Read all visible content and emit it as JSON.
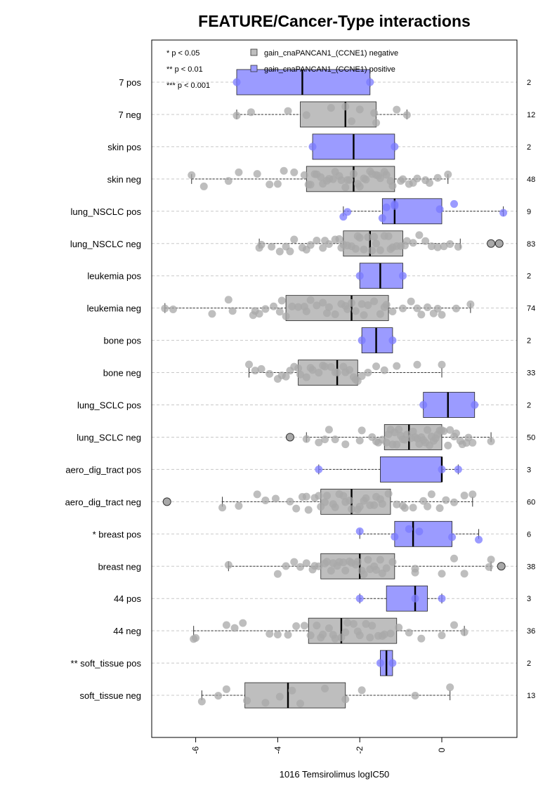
{
  "chart_data": {
    "type": "boxplot",
    "orientation": "horizontal",
    "title": "FEATURE/Cancer-Type interactions",
    "xlabel": "1016 Temsirolimus logIC50",
    "xlim": [
      -7.2,
      1.85
    ],
    "xticks": [
      -6,
      -4,
      -2,
      0
    ],
    "xtick_labels": [
      "-6",
      "-4",
      "-2",
      "0"
    ],
    "grid": "horizontal dashed lines at each row",
    "legend_position": "top-left",
    "legend": [
      {
        "label": "gain_cnaPANCAN1_(CCNE1) negative",
        "color": "#bebebe"
      },
      {
        "label": "gain_cnaPANCAN1_(CCNE1) positive",
        "color": "#9b9bff"
      }
    ],
    "significance_legend": [
      "* p < 0.05",
      "** p < 0.01",
      "*** p < 0.001"
    ],
    "colors": {
      "negative_fill": "#bebebe",
      "positive_fill": "#9b9bff",
      "negative_point": "#a8a8a8",
      "positive_point": "#7a7aff"
    },
    "rows": [
      {
        "label": "7 pos",
        "n": "2",
        "group": "pos",
        "whisker_low": -5.0,
        "q1": -5.0,
        "median": -3.4,
        "q3": -1.75,
        "whisker_high": -1.75,
        "points": [
          -5.0,
          -1.75
        ],
        "outliers": []
      },
      {
        "label": "7 neg",
        "n": "12",
        "group": "neg",
        "whisker_low": -5.0,
        "q1": -3.45,
        "median": -2.35,
        "q3": -1.6,
        "whisker_high": -0.85,
        "points": [
          -5.0,
          -4.65,
          -3.75,
          -3.3,
          -2.7,
          -2.35,
          -2.2,
          -2.0,
          -1.65,
          -1.6,
          -1.1,
          -0.85
        ],
        "outliers": []
      },
      {
        "label": "skin pos",
        "n": "2",
        "group": "pos",
        "whisker_low": -3.15,
        "q1": -3.15,
        "median": -2.15,
        "q3": -1.15,
        "whisker_high": -1.15,
        "points": [
          -3.15,
          -1.15
        ],
        "outliers": []
      },
      {
        "label": "skin neg",
        "n": "48",
        "group": "neg",
        "whisker_low": -6.1,
        "q1": -3.3,
        "median": -2.15,
        "q3": -1.15,
        "whisker_high": 0.15,
        "points": [
          -6.1,
          -5.8,
          -5.2,
          -4.95,
          -4.5,
          -4.2,
          -4.0,
          -3.85,
          -3.6,
          -3.35,
          -3.25,
          -3.1,
          -2.95,
          -2.8,
          -2.65,
          -2.5,
          -2.35,
          -2.25,
          -2.15,
          -2.05,
          -1.9,
          -1.75,
          -1.6,
          -1.5,
          -1.35,
          -1.2,
          -1.0,
          -0.95,
          -0.8,
          -0.6,
          -0.4,
          -0.3,
          -0.1,
          0.15,
          -3.2,
          -2.9,
          -2.6,
          -2.3,
          -2.0,
          -1.7,
          -1.4,
          -3.05,
          -2.75,
          -2.45,
          -1.85,
          -1.55,
          -1.25,
          -0.7
        ],
        "outliers": []
      },
      {
        "label": "lung_NSCLC pos",
        "n": "9",
        "group": "pos",
        "whisker_low": -2.4,
        "q1": -1.45,
        "median": -1.15,
        "q3": 0.0,
        "whisker_high": 1.5,
        "points": [
          -2.4,
          -2.3,
          -1.45,
          -1.35,
          -1.15,
          -1.15,
          -0.05,
          0.3,
          1.5
        ],
        "outliers": []
      },
      {
        "label": "lung_NSCLC neg",
        "n": "83",
        "group": "neg",
        "whisker_low": -4.45,
        "q1": -2.4,
        "median": -1.75,
        "q3": -0.95,
        "whisker_high": 0.45,
        "points": [
          -4.45,
          -4.4,
          -4.15,
          -3.95,
          -3.8,
          -3.6,
          -3.4,
          -3.2,
          -3.05,
          -2.9,
          -2.75,
          -2.6,
          -2.5,
          -2.4,
          -2.3,
          -2.2,
          -2.1,
          -2.0,
          -1.9,
          -1.8,
          -1.7,
          -1.6,
          -1.5,
          -1.4,
          -1.3,
          -1.2,
          -1.1,
          -1.0,
          -0.85,
          -0.7,
          -0.55,
          -0.4,
          -0.25,
          -0.1,
          0.05,
          0.2,
          0.4,
          -3.7,
          -3.3,
          -2.85,
          -2.45,
          -2.05,
          -1.65,
          -1.25,
          -0.9
        ],
        "outliers": [
          1.2,
          1.4
        ]
      },
      {
        "label": "leukemia pos",
        "n": "2",
        "group": "pos",
        "whisker_low": -2.0,
        "q1": -2.0,
        "median": -1.5,
        "q3": -0.95,
        "whisker_high": -0.95,
        "points": [
          -2.0,
          -0.95
        ],
        "outliers": []
      },
      {
        "label": "leukemia neg",
        "n": "74",
        "group": "neg",
        "whisker_low": -6.75,
        "q1": -3.8,
        "median": -2.2,
        "q3": -1.3,
        "whisker_high": 0.7,
        "points": [
          -6.75,
          -6.55,
          -5.6,
          -5.2,
          -5.1,
          -4.55,
          -4.45,
          -4.3,
          -4.1,
          -3.95,
          -3.8,
          -3.65,
          -3.5,
          -3.35,
          -3.2,
          -3.05,
          -2.9,
          -2.75,
          -2.6,
          -2.45,
          -2.3,
          -2.2,
          -2.1,
          -1.95,
          -1.8,
          -1.65,
          -1.5,
          -1.35,
          -1.2,
          -0.95,
          -0.75,
          -0.5,
          -0.35,
          -0.2,
          0.0,
          0.35,
          0.7,
          -4.6,
          -3.9,
          -3.3,
          -2.8,
          -2.35,
          -1.9,
          -1.4,
          -0.6,
          -0.1
        ],
        "outliers": []
      },
      {
        "label": "bone pos",
        "n": "2",
        "group": "pos",
        "whisker_low": -1.95,
        "q1": -1.95,
        "median": -1.6,
        "q3": -1.2,
        "whisker_high": -1.2,
        "points": [
          -1.95,
          -1.2
        ],
        "outliers": []
      },
      {
        "label": "bone neg",
        "n": "33",
        "group": "neg",
        "whisker_low": -4.7,
        "q1": -3.5,
        "median": -2.55,
        "q3": -2.05,
        "whisker_high": 0.0,
        "points": [
          -4.7,
          -4.55,
          -4.4,
          -4.2,
          -4.0,
          -3.8,
          -3.6,
          -3.45,
          -3.3,
          -3.15,
          -3.0,
          -2.85,
          -2.7,
          -2.55,
          -2.4,
          -2.25,
          -2.1,
          -1.95,
          -1.8,
          -1.6,
          -1.4,
          -1.1,
          -0.6,
          0.0,
          -3.9,
          -3.5,
          -2.9,
          -2.35,
          -2.05,
          -3.7,
          -3.2,
          -2.6,
          -2.15
        ],
        "outliers": []
      },
      {
        "label": "lung_SCLC pos",
        "n": "2",
        "group": "pos",
        "whisker_low": -0.45,
        "q1": -0.45,
        "median": 0.15,
        "q3": 0.8,
        "whisker_high": 0.8,
        "points": [
          -0.45,
          0.8
        ],
        "outliers": []
      },
      {
        "label": "lung_SCLC neg",
        "n": "50",
        "group": "neg",
        "whisker_low": -3.3,
        "q1": -1.4,
        "median": -0.8,
        "q3": 0.0,
        "whisker_high": 1.2,
        "points": [
          -3.3,
          -3.0,
          -2.85,
          -2.6,
          -2.35,
          -2.0,
          -1.95,
          -1.7,
          -1.55,
          -1.45,
          -1.35,
          -1.25,
          -1.15,
          -1.05,
          -0.95,
          -0.85,
          -0.75,
          -0.65,
          -0.55,
          -0.45,
          -0.35,
          -0.25,
          -0.15,
          -0.05,
          0.05,
          0.15,
          0.3,
          0.45,
          0.6,
          0.75,
          1.2,
          -1.3,
          -1.0,
          -0.7,
          -0.4,
          -0.1,
          0.2,
          0.5,
          -2.75,
          -1.6,
          -1.2,
          -0.9,
          -0.6,
          -0.3,
          0.0,
          0.35,
          0.65,
          -1.1,
          -0.5,
          -0.2
        ],
        "outliers": [
          -3.7
        ]
      },
      {
        "label": "aero_dig_tract pos",
        "n": "3",
        "group": "pos",
        "whisker_low": -3.0,
        "q1": -1.5,
        "median": 0.0,
        "q3": 0.0,
        "whisker_high": 0.4,
        "points": [
          -3.0,
          0.0,
          0.4
        ],
        "outliers": []
      },
      {
        "label": "aero_dig_tract neg",
        "n": "60",
        "group": "neg",
        "whisker_low": -5.35,
        "q1": -2.95,
        "median": -2.2,
        "q3": -1.25,
        "whisker_high": 0.75,
        "points": [
          -5.35,
          -4.95,
          -4.5,
          -4.3,
          -4.05,
          -3.7,
          -3.55,
          -3.4,
          -3.25,
          -3.1,
          -2.95,
          -2.8,
          -2.65,
          -2.5,
          -2.35,
          -2.2,
          -2.05,
          -1.9,
          -1.75,
          -1.6,
          -1.45,
          -1.3,
          -1.1,
          -0.9,
          -0.7,
          -0.45,
          -0.25,
          -0.05,
          0.1,
          0.3,
          0.55,
          0.75,
          -3.3,
          -2.85,
          -2.4,
          -2.0,
          -1.65,
          -3.0,
          -2.6,
          -2.25,
          -1.85,
          -1.5,
          -0.95,
          -0.35
        ],
        "outliers": [
          -6.7
        ]
      },
      {
        "label": "* breast pos",
        "n": "6",
        "group": "pos",
        "whisker_low": -2.0,
        "q1": -1.15,
        "median": -0.7,
        "q3": 0.25,
        "whisker_high": 0.9,
        "points": [
          -2.0,
          -1.15,
          -0.8,
          -0.55,
          0.25,
          0.9
        ],
        "outliers": []
      },
      {
        "label": "breast neg",
        "n": "38",
        "group": "neg",
        "whisker_low": -5.2,
        "q1": -2.95,
        "median": -2.0,
        "q3": -1.15,
        "whisker_high": 1.2,
        "points": [
          -5.2,
          -4.0,
          -3.8,
          -3.6,
          -3.45,
          -3.3,
          -3.15,
          -3.0,
          -2.85,
          -2.7,
          -2.55,
          -2.4,
          -2.25,
          -2.1,
          -1.95,
          -1.8,
          -1.65,
          -1.5,
          -1.35,
          -1.2,
          -0.65,
          0.0,
          0.3,
          0.55,
          1.15,
          1.2,
          -3.1,
          -2.8,
          -2.5,
          -2.2,
          -1.9,
          -1.6,
          -2.65,
          -2.35,
          -2.05,
          -1.75,
          -1.45,
          -0.65
        ],
        "outliers": [
          1.45
        ]
      },
      {
        "label": "44 pos",
        "n": "3",
        "group": "pos",
        "whisker_low": -2.0,
        "q1": -1.35,
        "median": -0.65,
        "q3": -0.35,
        "whisker_high": 0.0,
        "points": [
          -2.0,
          -0.65,
          0.0
        ],
        "outliers": []
      },
      {
        "label": "44 neg",
        "n": "36",
        "group": "neg",
        "whisker_low": -6.05,
        "q1": -3.25,
        "median": -2.45,
        "q3": -1.1,
        "whisker_high": 0.55,
        "points": [
          -6.05,
          -6.0,
          -5.25,
          -5.05,
          -4.85,
          -4.2,
          -4.0,
          -3.75,
          -3.55,
          -3.35,
          -3.2,
          -3.05,
          -2.9,
          -2.75,
          -2.6,
          -2.45,
          -2.3,
          -2.15,
          -2.0,
          -1.85,
          -1.7,
          -1.55,
          -1.4,
          -1.25,
          -1.05,
          -0.8,
          -0.5,
          0.0,
          0.3,
          0.55,
          -2.95,
          -2.65,
          -2.35,
          -2.05,
          -1.75,
          -1.45
        ],
        "outliers": []
      },
      {
        "label": "** soft_tissue pos",
        "n": "2",
        "group": "pos",
        "whisker_low": -1.5,
        "q1": -1.5,
        "median": -1.35,
        "q3": -1.2,
        "whisker_high": -1.2,
        "points": [
          -1.5,
          -1.2
        ],
        "outliers": []
      },
      {
        "label": "soft_tissue neg",
        "n": "13",
        "group": "neg",
        "whisker_low": -5.85,
        "q1": -4.8,
        "median": -3.75,
        "q3": -2.35,
        "whisker_high": 0.2,
        "points": [
          -5.85,
          -5.45,
          -5.25,
          -4.75,
          -4.3,
          -3.95,
          -3.65,
          -3.45,
          -2.85,
          -2.35,
          -1.95,
          -0.65,
          0.2
        ],
        "outliers": []
      }
    ]
  }
}
